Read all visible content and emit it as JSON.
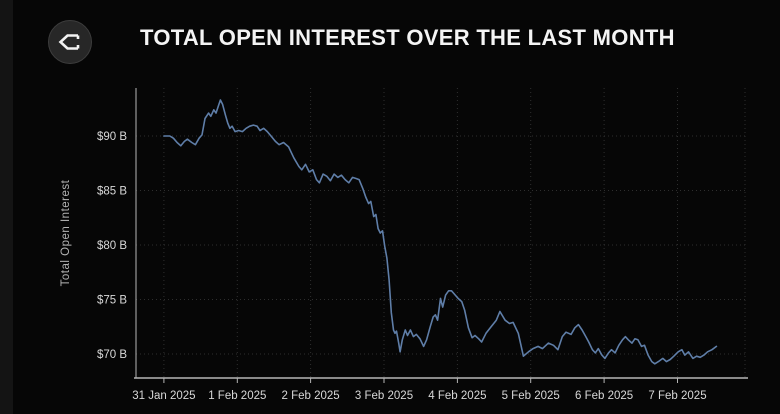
{
  "header": {
    "title": "TOTAL OPEN INTEREST OVER THE LAST MONTH",
    "logo_icon": "sigma-diamond-icon"
  },
  "chart_data": {
    "type": "line",
    "title": "TOTAL OPEN INTEREST OVER THE LAST MONTH",
    "xlabel": "",
    "ylabel": "Total Open Interest",
    "grid": true,
    "legend": false,
    "line_color": "#5f7ea8",
    "colors": {
      "background": "#060606",
      "grid": "#2e2e2e",
      "axis": "#b5b5b5",
      "tick_text": "#d8d8d8",
      "title_text": "#f4f4f4"
    },
    "y_unit": "USD billions",
    "y_range": [
      67.8,
      94.4
    ],
    "x_range_days": [
      -0.38,
      7.92
    ],
    "y_ticks": [
      {
        "label": "$70 B",
        "value": 70
      },
      {
        "label": "$75 B",
        "value": 75
      },
      {
        "label": "$80 B",
        "value": 80
      },
      {
        "label": "$85 B",
        "value": 85
      },
      {
        "label": "$90 B",
        "value": 90
      }
    ],
    "x_ticks": [
      {
        "label": "31 Jan 2025",
        "day": 0
      },
      {
        "label": "1 Feb 2025",
        "day": 1
      },
      {
        "label": "2 Feb 2025",
        "day": 2
      },
      {
        "label": "3 Feb 2025",
        "day": 3
      },
      {
        "label": "4 Feb 2025",
        "day": 4
      },
      {
        "label": "5 Feb 2025",
        "day": 5
      },
      {
        "label": "6 Feb 2025",
        "day": 6
      },
      {
        "label": "7 Feb 2025",
        "day": 7
      }
    ],
    "series": [
      {
        "name": "Total Open Interest ($B)",
        "points": [
          [
            0.0,
            90.0
          ],
          [
            0.08,
            90.0
          ],
          [
            0.13,
            89.8
          ],
          [
            0.18,
            89.4
          ],
          [
            0.23,
            89.1
          ],
          [
            0.28,
            89.5
          ],
          [
            0.32,
            89.7
          ],
          [
            0.38,
            89.4
          ],
          [
            0.43,
            89.2
          ],
          [
            0.48,
            89.8
          ],
          [
            0.52,
            90.1
          ],
          [
            0.56,
            91.6
          ],
          [
            0.61,
            92.1
          ],
          [
            0.64,
            91.8
          ],
          [
            0.68,
            92.4
          ],
          [
            0.71,
            92.1
          ],
          [
            0.74,
            92.7
          ],
          [
            0.77,
            93.3
          ],
          [
            0.8,
            92.9
          ],
          [
            0.84,
            91.9
          ],
          [
            0.87,
            91.2
          ],
          [
            0.9,
            90.7
          ],
          [
            0.93,
            90.9
          ],
          [
            0.97,
            90.4
          ],
          [
            1.02,
            90.5
          ],
          [
            1.07,
            90.4
          ],
          [
            1.12,
            90.7
          ],
          [
            1.17,
            90.9
          ],
          [
            1.22,
            91.0
          ],
          [
            1.27,
            90.9
          ],
          [
            1.31,
            90.5
          ],
          [
            1.36,
            90.7
          ],
          [
            1.41,
            90.4
          ],
          [
            1.46,
            90.0
          ],
          [
            1.52,
            89.5
          ],
          [
            1.57,
            89.2
          ],
          [
            1.63,
            89.4
          ],
          [
            1.7,
            89.0
          ],
          [
            1.77,
            88.0
          ],
          [
            1.84,
            87.2
          ],
          [
            1.88,
            86.9
          ],
          [
            1.93,
            87.4
          ],
          [
            1.98,
            86.7
          ],
          [
            2.03,
            86.9
          ],
          [
            2.08,
            86.0
          ],
          [
            2.12,
            85.7
          ],
          [
            2.17,
            86.5
          ],
          [
            2.22,
            86.3
          ],
          [
            2.27,
            85.9
          ],
          [
            2.32,
            86.5
          ],
          [
            2.37,
            86.2
          ],
          [
            2.42,
            86.4
          ],
          [
            2.47,
            86.0
          ],
          [
            2.52,
            85.7
          ],
          [
            2.57,
            86.2
          ],
          [
            2.62,
            86.1
          ],
          [
            2.66,
            86.0
          ],
          [
            2.71,
            85.2
          ],
          [
            2.75,
            84.4
          ],
          [
            2.79,
            83.8
          ],
          [
            2.82,
            84.0
          ],
          [
            2.86,
            82.6
          ],
          [
            2.89,
            82.8
          ],
          [
            2.92,
            81.5
          ],
          [
            2.95,
            81.1
          ],
          [
            2.98,
            81.3
          ],
          [
            3.01,
            79.9
          ],
          [
            3.04,
            78.8
          ],
          [
            3.07,
            76.8
          ],
          [
            3.1,
            73.8
          ],
          [
            3.13,
            72.2
          ],
          [
            3.15,
            71.9
          ],
          [
            3.17,
            72.1
          ],
          [
            3.2,
            71.0
          ],
          [
            3.22,
            70.2
          ],
          [
            3.25,
            71.3
          ],
          [
            3.29,
            72.2
          ],
          [
            3.32,
            71.7
          ],
          [
            3.36,
            72.2
          ],
          [
            3.4,
            71.6
          ],
          [
            3.44,
            71.8
          ],
          [
            3.49,
            71.4
          ],
          [
            3.54,
            70.7
          ],
          [
            3.58,
            71.3
          ],
          [
            3.63,
            72.5
          ],
          [
            3.67,
            73.4
          ],
          [
            3.7,
            73.6
          ],
          [
            3.73,
            73.1
          ],
          [
            3.77,
            75.1
          ],
          [
            3.8,
            74.3
          ],
          [
            3.84,
            75.4
          ],
          [
            3.88,
            75.8
          ],
          [
            3.92,
            75.8
          ],
          [
            3.96,
            75.5
          ],
          [
            4.01,
            75.1
          ],
          [
            4.06,
            74.8
          ],
          [
            4.1,
            74.0
          ],
          [
            4.15,
            72.4
          ],
          [
            4.2,
            71.5
          ],
          [
            4.24,
            71.7
          ],
          [
            4.29,
            71.4
          ],
          [
            4.33,
            71.1
          ],
          [
            4.39,
            71.9
          ],
          [
            4.46,
            72.5
          ],
          [
            4.53,
            73.1
          ],
          [
            4.58,
            73.9
          ],
          [
            4.65,
            73.1
          ],
          [
            4.71,
            72.8
          ],
          [
            4.76,
            72.9
          ],
          [
            4.83,
            71.9
          ],
          [
            4.9,
            69.8
          ],
          [
            4.97,
            70.2
          ],
          [
            5.03,
            70.5
          ],
          [
            5.1,
            70.7
          ],
          [
            5.16,
            70.5
          ],
          [
            5.24,
            71.0
          ],
          [
            5.31,
            70.8
          ],
          [
            5.37,
            70.4
          ],
          [
            5.43,
            71.6
          ],
          [
            5.48,
            72.0
          ],
          [
            5.55,
            71.8
          ],
          [
            5.6,
            72.4
          ],
          [
            5.65,
            72.7
          ],
          [
            5.7,
            72.2
          ],
          [
            5.75,
            71.6
          ],
          [
            5.79,
            71.1
          ],
          [
            5.84,
            70.4
          ],
          [
            5.88,
            70.1
          ],
          [
            5.92,
            70.5
          ],
          [
            5.97,
            69.9
          ],
          [
            6.01,
            69.6
          ],
          [
            6.06,
            70.1
          ],
          [
            6.1,
            70.4
          ],
          [
            6.15,
            70.1
          ],
          [
            6.2,
            70.8
          ],
          [
            6.25,
            71.3
          ],
          [
            6.29,
            71.6
          ],
          [
            6.33,
            71.3
          ],
          [
            6.38,
            71.0
          ],
          [
            6.42,
            71.4
          ],
          [
            6.46,
            71.3
          ],
          [
            6.51,
            70.7
          ],
          [
            6.55,
            70.8
          ],
          [
            6.6,
            69.9
          ],
          [
            6.65,
            69.3
          ],
          [
            6.69,
            69.1
          ],
          [
            6.74,
            69.3
          ],
          [
            6.8,
            69.6
          ],
          [
            6.85,
            69.3
          ],
          [
            6.9,
            69.5
          ],
          [
            6.95,
            69.8
          ],
          [
            7.01,
            70.2
          ],
          [
            7.06,
            70.4
          ],
          [
            7.1,
            69.9
          ],
          [
            7.15,
            70.2
          ],
          [
            7.21,
            69.6
          ],
          [
            7.26,
            69.8
          ],
          [
            7.31,
            69.7
          ],
          [
            7.36,
            69.9
          ],
          [
            7.41,
            70.2
          ],
          [
            7.47,
            70.4
          ],
          [
            7.53,
            70.7
          ]
        ]
      }
    ]
  }
}
